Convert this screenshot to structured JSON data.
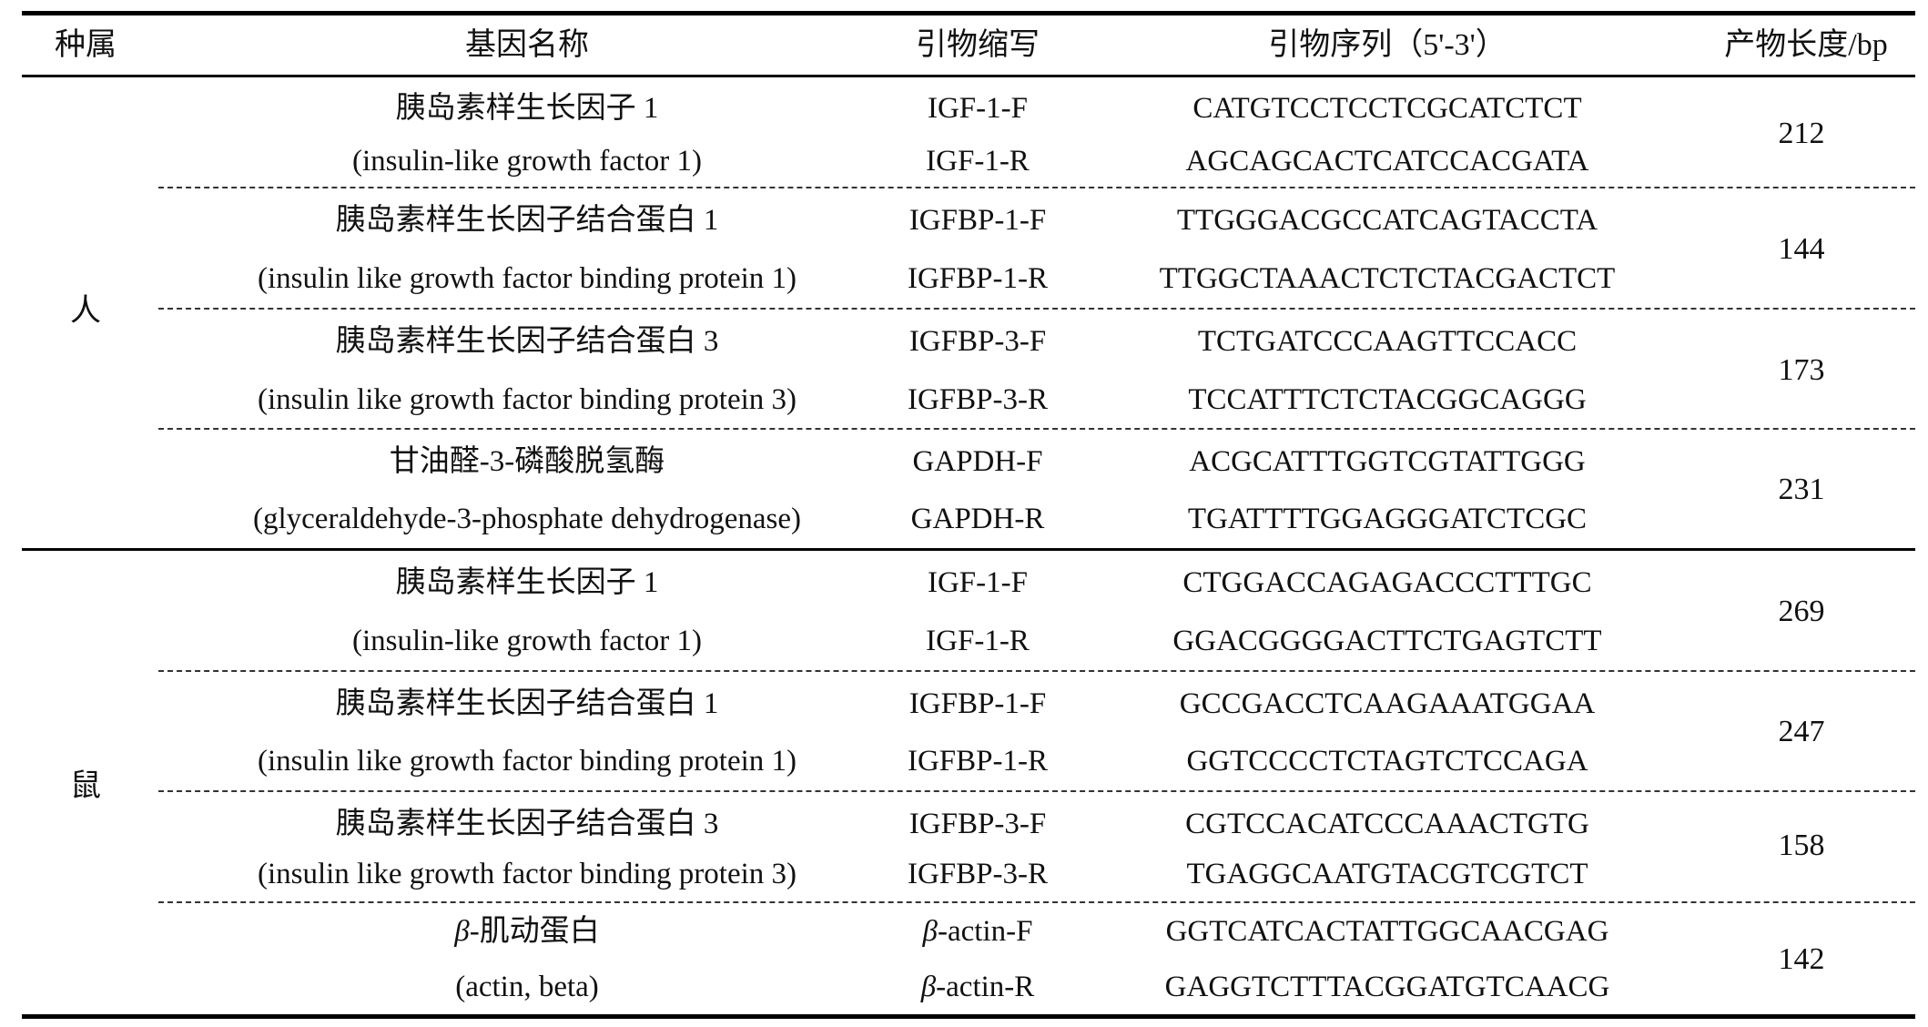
{
  "headers": {
    "species": "种属",
    "gene_name": "基因名称",
    "primer_abbr": "引物缩写",
    "primer_seq": "引物序列（5'-3'）",
    "product_length": "产物长度/bp"
  },
  "groups": [
    {
      "species": "人",
      "genes": [
        {
          "name_cn": "胰岛素样生长因子 1",
          "name_en": "(insulin-like growth factor 1)",
          "primers": [
            {
              "abbr": "IGF-1-F",
              "seq": "CATGTCCTCCTCGCATCTCT"
            },
            {
              "abbr": "IGF-1-R",
              "seq": "AGCAGCACTCATCCACGATA"
            }
          ],
          "length": "212"
        },
        {
          "name_cn": "胰岛素样生长因子结合蛋白 1",
          "name_en": "(insulin like growth factor binding protein 1)",
          "primers": [
            {
              "abbr": "IGFBP-1-F",
              "seq": "TTGGGACGCCATCAGTACCTA"
            },
            {
              "abbr": "IGFBP-1-R",
              "seq": "TTGGCTAAACTCTCTACGACTCT"
            }
          ],
          "length": "144"
        },
        {
          "name_cn": "胰岛素样生长因子结合蛋白 3",
          "name_en": "(insulin like growth factor binding protein 3)",
          "primers": [
            {
              "abbr": "IGFBP-3-F",
              "seq": "TCTGATCCCAAGTTCCACC"
            },
            {
              "abbr": "IGFBP-3-R",
              "seq": "TCCATTTCTCTACGGCAGGG"
            }
          ],
          "length": "173"
        },
        {
          "name_cn": "甘油醛-3-磷酸脱氢酶",
          "name_en": "(glyceraldehyde-3-phosphate dehydrogenase)",
          "primers": [
            {
              "abbr": "GAPDH-F",
              "seq": "ACGCATTTGGTCGTATTGGG"
            },
            {
              "abbr": "GAPDH-R",
              "seq": "TGATTTTGGAGGGATCTCGC"
            }
          ],
          "length": "231"
        }
      ]
    },
    {
      "species": "鼠",
      "genes": [
        {
          "name_cn": "胰岛素样生长因子 1",
          "name_en": "(insulin-like growth factor 1)",
          "primers": [
            {
              "abbr": "IGF-1-F",
              "seq": "CTGGACCAGAGACCCTTTGC"
            },
            {
              "abbr": "IGF-1-R",
              "seq": "GGACGGGGACTTCTGAGTCTT"
            }
          ],
          "length": "269"
        },
        {
          "name_cn": "胰岛素样生长因子结合蛋白 1",
          "name_en": "(insulin like growth factor binding protein 1)",
          "primers": [
            {
              "abbr": "IGFBP-1-F",
              "seq": "GCCGACCTCAAGAAATGGAA"
            },
            {
              "abbr": "IGFBP-1-R",
              "seq": "GGTCCCCTCTAGTCTCCAGA"
            }
          ],
          "length": "247"
        },
        {
          "name_cn": "胰岛素样生长因子结合蛋白 3",
          "name_en": "(insulin like growth factor binding protein 3)",
          "primers": [
            {
              "abbr": "IGFBP-3-F",
              "seq": "CGTCCACATCCCAAACTGTG"
            },
            {
              "abbr": "IGFBP-3-R",
              "seq": "TGAGGCAATGTACGTCGTCT"
            }
          ],
          "length": "158"
        },
        {
          "name_cn_prefix": "β",
          "name_cn": "-肌动蛋白",
          "name_en": "(actin, beta)",
          "primers": [
            {
              "abbr_prefix": "β",
              "abbr": "-actin-F",
              "seq": "GGTCATCACTATTGGCAACGAG"
            },
            {
              "abbr_prefix": "β",
              "abbr": "-actin-R",
              "seq": "GAGGTCTTTACGGATGTCAACG"
            }
          ],
          "length": "142"
        }
      ]
    }
  ]
}
